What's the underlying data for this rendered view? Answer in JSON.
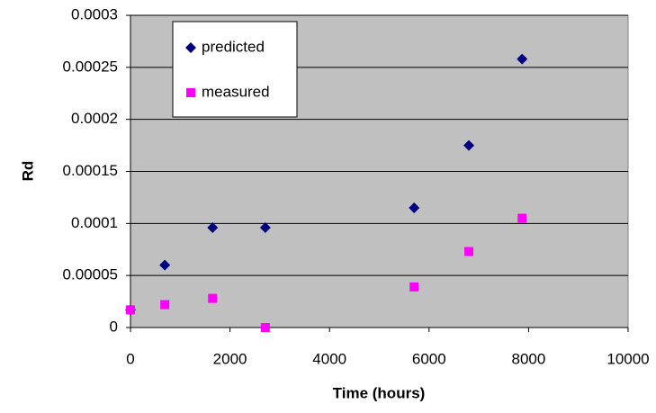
{
  "chart_data": {
    "type": "scatter",
    "x_label": "Time (hours)",
    "y_label": "Rd",
    "series": [
      {
        "name": "predicted",
        "color": "#000080",
        "marker": "diamond",
        "x": [
          0,
          690,
          1650,
          2710,
          5700,
          6800,
          7870
        ],
        "values": [
          1.7e-05,
          6e-05,
          9.6e-05,
          9.6e-05,
          0.000115,
          0.000175,
          0.000258
        ]
      },
      {
        "name": "measured",
        "color": "#ff00ff",
        "marker": "square",
        "x": [
          0,
          690,
          1650,
          2710,
          5700,
          6800,
          7870
        ],
        "values": [
          1.7e-05,
          2.2e-05,
          2.8e-05,
          0,
          3.9e-05,
          7.3e-05,
          0.000105
        ]
      }
    ],
    "xlim": [
      0,
      10000
    ],
    "xticks": [
      0,
      2000,
      4000,
      6000,
      8000,
      10000
    ],
    "ylim": [
      0,
      0.0003
    ],
    "yticks": [
      0,
      5e-05,
      0.0001,
      0.00015,
      0.0002,
      0.00025,
      0.0003
    ],
    "grid": true,
    "plot_background": "#c0c0c0",
    "legend": "upper left"
  }
}
